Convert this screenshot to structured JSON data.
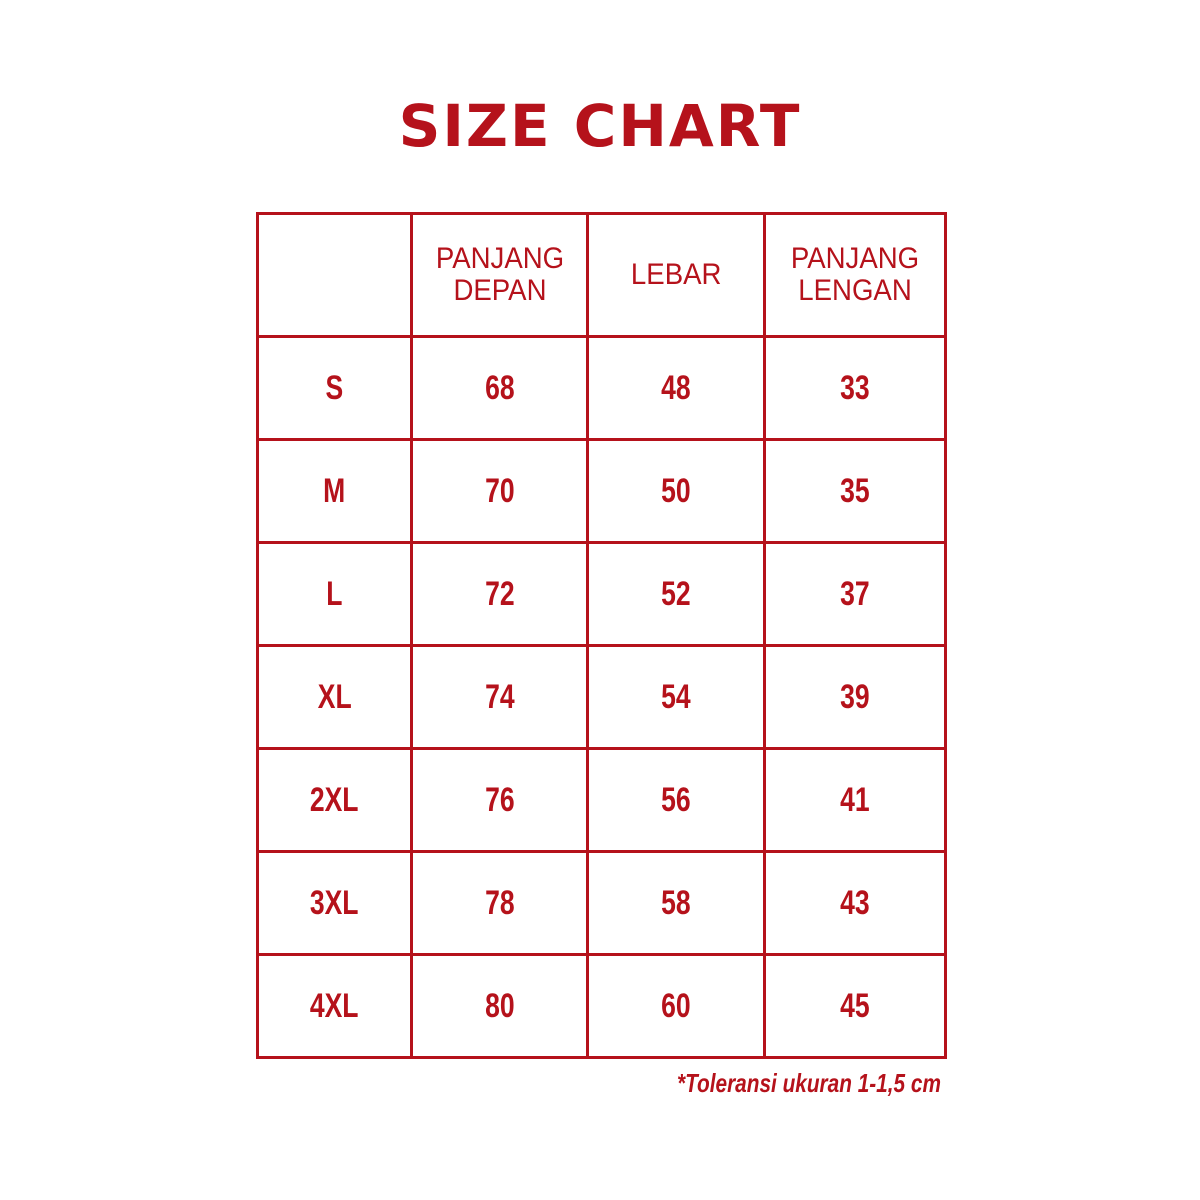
{
  "title": "SIZE CHART",
  "colors": {
    "accent": "#b5121b",
    "background": "#ffffff"
  },
  "table": {
    "headers": [
      "",
      "PANJANG DEPAN",
      "LEBAR",
      "PANJANG LENGAN"
    ],
    "rows": [
      [
        "S",
        "68",
        "48",
        "33"
      ],
      [
        "M",
        "70",
        "50",
        "35"
      ],
      [
        "L",
        "72",
        "52",
        "37"
      ],
      [
        "XL",
        "74",
        "54",
        "39"
      ],
      [
        "2XL",
        "76",
        "56",
        "41"
      ],
      [
        "3XL",
        "78",
        "58",
        "43"
      ],
      [
        "4XL",
        "80",
        "60",
        "45"
      ]
    ]
  },
  "footnote": "*Toleransi ukuran 1-1,5 cm"
}
